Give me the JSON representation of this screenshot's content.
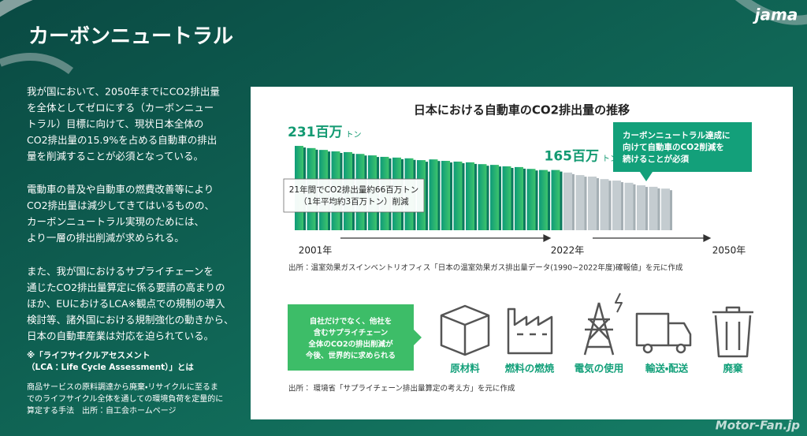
{
  "logo": "jama",
  "title": "カーボンニュートラル",
  "body": {
    "paragraphs": [
      [
        "我が国において、2050年までにCO2排出量",
        "を全体としてゼロにする（カーボンニュー",
        "トラル）目標に向けて、現状日本全体の",
        "CO2排出量の15.9%を占める自動車の排出",
        "量を削減することが必須となっている。"
      ],
      [
        "電動車の普及や自動車の燃費改善等により",
        "CO2排出量は減少してきてはいるものの、",
        "カーボンニュートラル実現のためには、",
        "より一層の排出削減が求められる。"
      ],
      [
        "また、我が国におけるサプライチェーンを",
        "通じたCO2排出量算定に係る要請の高まりの",
        "ほか、EUにおけるLCA※観点での規制の導入",
        "検討等、諸外国における規制強化の動きから、",
        "日本の自動車産業は対応を迫られている。"
      ]
    ],
    "note_heading": [
      "※「ライフサイクルアセスメント",
      "（LCA：Life Cycle Assessment）」とは"
    ],
    "note_body": [
      "商品サービスの原料調達から廃棄・リサイクルに至るま",
      "でのライフサイクル全体を通しての環境負荷を定量的に",
      "算定する手法　出所：自工会ホームページ"
    ]
  },
  "chart_data": {
    "type": "bar",
    "title": "日本における自動車のCO2排出量の推移",
    "unit": "トン",
    "categories": [
      "2001年",
      null,
      null,
      null,
      null,
      null,
      null,
      null,
      null,
      null,
      null,
      null,
      null,
      null,
      null,
      null,
      null,
      null,
      null,
      null,
      null,
      "2022年",
      null,
      null,
      null,
      null,
      null,
      null,
      null,
      null,
      null
    ],
    "axis_end_label": "2050年",
    "series": [
      {
        "color": "#17a57a",
        "values": [
          231,
          225,
          220,
          216,
          214,
          209,
          205,
          201,
          199,
          197,
          192,
          194,
          190,
          188,
          186,
          181,
          179,
          175,
          173,
          168,
          165,
          165,
          null,
          null,
          null,
          null,
          null,
          null,
          null,
          null,
          null
        ],
        "value_labels": [
          "231百万",
          null,
          null,
          null,
          null,
          null,
          null,
          null,
          null,
          null,
          null,
          null,
          null,
          null,
          null,
          null,
          null,
          null,
          null,
          null,
          null,
          "165百万",
          null,
          null,
          null,
          null,
          null,
          null,
          null,
          null,
          null
        ]
      },
      {
        "color": "#c4ccd0",
        "values": [
          null,
          null,
          null,
          null,
          null,
          null,
          null,
          null,
          null,
          null,
          null,
          null,
          null,
          null,
          null,
          null,
          null,
          null,
          null,
          null,
          null,
          null,
          158,
          151,
          147,
          140,
          136,
          130,
          123,
          119,
          114
        ]
      }
    ],
    "annotation": [
      "21年間でCO2排出量約66百万トン",
      "（1年平均約3百万トン）削減"
    ],
    "callout": [
      "カーボンニュートラル達成に",
      "向けて自動車のCO2削減を",
      "続けることが必須"
    ],
    "source": "出所：温室効果ガスインベントリオフィス「日本の温室効果ガス排出量データ(1990~2022年度)確報値」を元に作成"
  },
  "supply_chain": {
    "message": [
      "自社だけでなく、他社を",
      "含むサプライチェーン",
      "全体のCO2の排出削減が",
      "今後、世界的に求められる"
    ],
    "stages": [
      "原材料",
      "燃料の燃焼",
      "電気の使用",
      "輸送・配送",
      "廃棄"
    ],
    "source": "出所： 環境省「サプライチェーン排出量算定の考え方」を元に作成"
  },
  "watermark": "Motor-Fan.jp"
}
